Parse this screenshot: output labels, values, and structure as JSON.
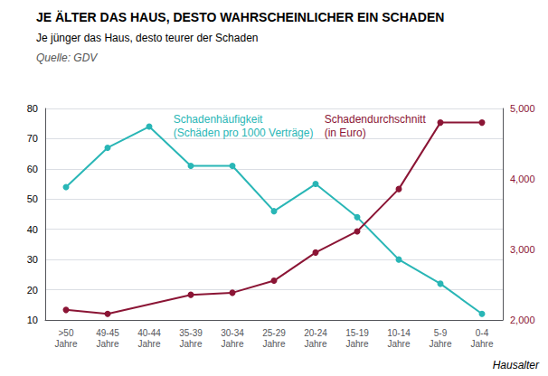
{
  "chart_data": {
    "type": "line",
    "title": "JE ÄLTER DAS HAUS, DESTO WAHRSCHEINLICHER EIN SCHADEN",
    "subtitle": "Je jünger das Haus, desto teurer der Schaden",
    "xlabel": "Hausalter",
    "categories": [
      ">50\nJahre",
      "49-45\nJahre",
      "40-44\nJahre",
      "35-39\nJahre",
      "30-34\nJahre",
      "25-29\nJahre",
      "20-24\nJahre",
      "15-19\nJahre",
      "10-14\nJahre",
      "5-9\nJahre",
      "0-4\nJahre"
    ],
    "series": [
      {
        "color": "#29b6b6",
        "marker": "circle",
        "values": [
          54,
          67,
          74,
          61,
          61,
          46,
          55,
          44,
          30,
          22,
          12
        ]
      },
      {
        "color": "#8b1535",
        "marker": "circle",
        "axis": "y2",
        "values": [
          2143,
          2086,
          null,
          2357,
          2386,
          2557,
          2957,
          3257,
          3857,
          4800,
          4800
        ]
      }
    ],
    "ylim": [
      10,
      80
    ],
    "yticks": [
      10,
      20,
      30,
      40,
      50,
      60,
      70,
      80
    ],
    "y2lim": [
      2000,
      5000
    ],
    "y2ticks": [
      2000,
      3000,
      4000,
      5000
    ],
    "grid": true,
    "annotations": [
      {
        "text": "Schadenhäufigkeit",
        "color": "#29b6b6"
      },
      {
        "text": "(Schäden pro 1000 Verträge)",
        "color": "#29b6b6"
      },
      {
        "text": "Schadendurchschnitt",
        "color": "#8b1535"
      },
      {
        "text": "(in Euro)",
        "color": "#8b1535"
      },
      {
        "text": "Quelle: GDV",
        "color": "#555555"
      }
    ]
  }
}
